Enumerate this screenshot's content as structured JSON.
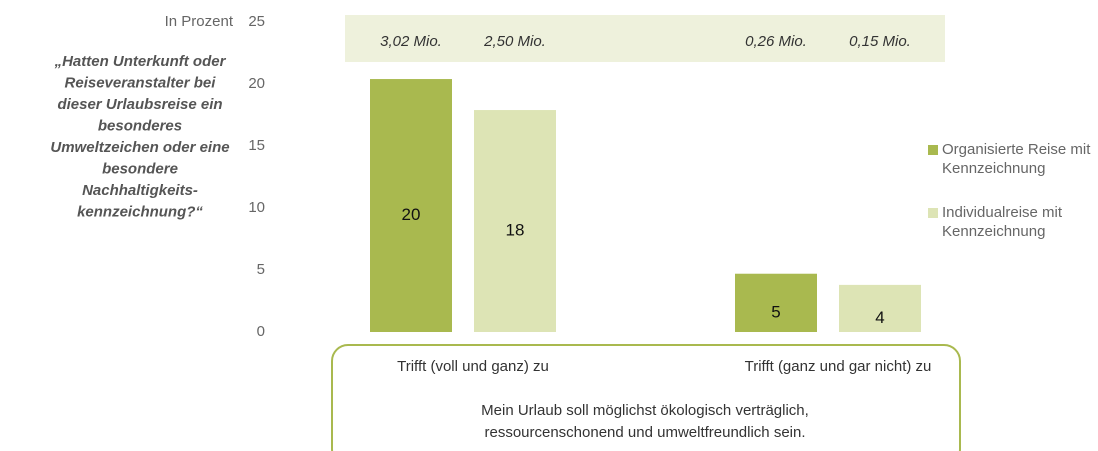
{
  "chart_data": {
    "type": "bar",
    "y_label": "In Prozent",
    "question_lines": [
      "„Hatten Unterkunft oder",
      "Reiseveranstalter bei",
      "dieser Urlaubsreise ein",
      "besonderes",
      "Umweltzeichen oder eine",
      "besondere",
      "Nachhaltigkeits-",
      "kennzeichnung?“"
    ],
    "categories": [
      "Trifft (voll und ganz) zu",
      "Trifft (ganz und gar nicht) zu"
    ],
    "x_label_lines": [
      "Mein Urlaub soll möglichst ökologisch verträglich,",
      "ressourcenschonend und umweltfreundlich sein."
    ],
    "series": [
      {
        "name": "Organisierte Reise mit Kennzeichnung",
        "color": "#a9b94f",
        "values": [
          20.4,
          4.7
        ],
        "value_labels": [
          "20",
          "5"
        ],
        "totals": [
          "3,02 Mio.",
          "0,26 Mio."
        ]
      },
      {
        "name": "Individualreise mit Kennzeichnung",
        "color": "#dde4b5",
        "values": [
          17.9,
          3.8
        ],
        "value_labels": [
          "18",
          "4"
        ],
        "totals": [
          "2,50 Mio.",
          "0,15 Mio."
        ]
      }
    ],
    "ylim": [
      0,
      25
    ],
    "yticks": [
      0,
      5,
      10,
      15,
      20,
      25
    ],
    "grid": false,
    "legend": "right"
  }
}
